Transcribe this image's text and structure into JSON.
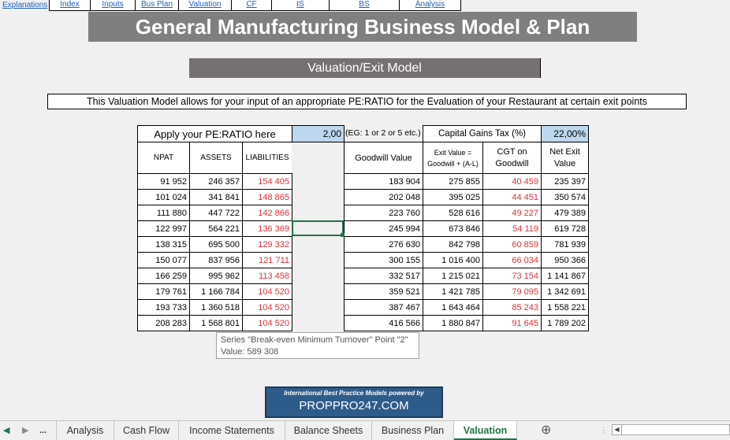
{
  "nav": {
    "explanations": "Explanations",
    "items": [
      "Index",
      "Inputs",
      "Bus Plan",
      "Valuation",
      "CF",
      "IS",
      "BS",
      "Analysis"
    ]
  },
  "title": "General Manufacturing Business Model & Plan",
  "subtitle": "Valuation/Exit Model",
  "description": "This Valuation Model allows for your input of an appropriate PE:RATIO for the Evaluation of your Restaurant at certain exit points",
  "inputs": {
    "pe_label": "Apply your PE:RATIO here",
    "pe_value": "2,00",
    "pe_hint": "(EG: 1 or 2 or 5 etc.)",
    "cgt_label": "Capital Gains Tax (%)",
    "cgt_value": "22,00%"
  },
  "left_table": {
    "headers": [
      "NPAT",
      "ASSETS",
      "LIABILITIES"
    ],
    "rows": [
      [
        "91 952",
        "246 357",
        "154 405"
      ],
      [
        "101 024",
        "341 841",
        "148 865"
      ],
      [
        "111 880",
        "447 722",
        "142 866"
      ],
      [
        "122 997",
        "564 221",
        "136 369"
      ],
      [
        "138 315",
        "695 500",
        "129 332"
      ],
      [
        "150 077",
        "837 956",
        "121 711"
      ],
      [
        "166 259",
        "995 962",
        "113 458"
      ],
      [
        "179 761",
        "1 166 784",
        "104 520"
      ],
      [
        "193 733",
        "1 360 518",
        "104 520"
      ],
      [
        "208 283",
        "1 568 801",
        "104 520"
      ]
    ]
  },
  "right_table": {
    "headers": [
      "Goodwill Value",
      "Exit Value = Goodwill + (A-L)",
      "CGT on Goodwill",
      "Net Exit Value"
    ],
    "rows": [
      [
        "183 904",
        "275 855",
        "40 459",
        "235 397"
      ],
      [
        "202 048",
        "395 025",
        "44 451",
        "350 574"
      ],
      [
        "223 760",
        "528 616",
        "49 227",
        "479 389"
      ],
      [
        "245 994",
        "673 846",
        "54 119",
        "619 728"
      ],
      [
        "276 630",
        "842 798",
        "60 859",
        "781 939"
      ],
      [
        "300 155",
        "1 016 400",
        "66 034",
        "950 366"
      ],
      [
        "332 517",
        "1 215 021",
        "73 154",
        "1 141 867"
      ],
      [
        "359 521",
        "1 421 785",
        "79 095",
        "1 342 691"
      ],
      [
        "387 467",
        "1 643 464",
        "85 243",
        "1 558 221"
      ],
      [
        "416 566",
        "1 880 847",
        "91 645",
        "1 789 202"
      ]
    ]
  },
  "tooltip": {
    "line1": "Series \"Break-even Minimum Turnover\" Point \"2\"",
    "line2": "Value: 589 308"
  },
  "logo": {
    "line1": "International Best Practice Models powered by",
    "line2": "PROPPRO247.COM"
  },
  "sheet_tabs": {
    "more": "...",
    "tabs": [
      "Analysis",
      "Cash Flow",
      "Income Statements",
      "Balance Sheets",
      "Business Plan",
      "Valuation"
    ],
    "active": "Valuation",
    "add_icon": "⊕"
  },
  "colors": {
    "title_bg": "#7f7f7f",
    "subtitle_bg": "#767171",
    "input_bg": "#bdd7ee",
    "negative_text": "#e0303a",
    "excel_green": "#217346",
    "link_blue": "#1f5fbf"
  }
}
